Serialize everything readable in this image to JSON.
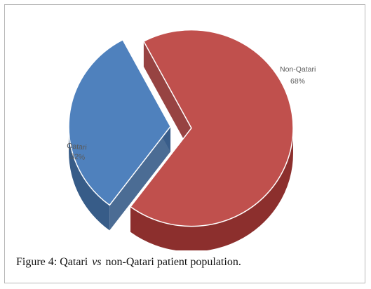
{
  "chart_data": {
    "type": "pie",
    "style": "3d-exploded",
    "slices": [
      {
        "label": "Non-Qatari",
        "value": 68,
        "value_label": "68%",
        "color": "#c0504d",
        "side_color": "#8c2f2d"
      },
      {
        "label": "Qatari",
        "value": 32,
        "value_label": "32%",
        "color": "#4f81bd",
        "side_color": "#375c88"
      }
    ]
  },
  "caption": {
    "figure": "Figure 4:",
    "part1": "Qatari",
    "vs": "vs",
    "part2": "non-Qatari patient population."
  }
}
